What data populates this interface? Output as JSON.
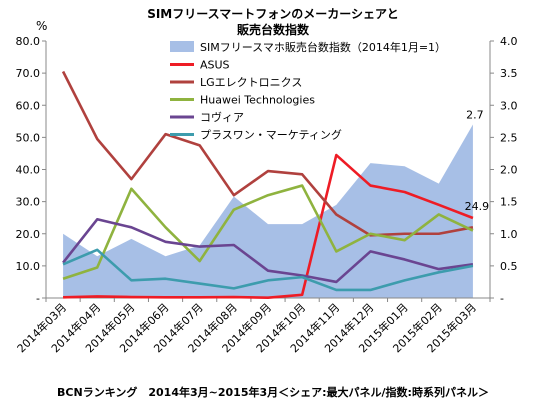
{
  "chart_data": {
    "type": "line",
    "title_line1": "SIMフリースマートフォンのメーカーシェアと",
    "title_line2": "販売台数指数",
    "y_unit": "%",
    "footer": "BCNランキング　2014年3月~2015年3月＜シェア:最大パネル/指数:時系列パネル＞",
    "categories": [
      "2014年03月",
      "2014年04月",
      "2014年05月",
      "2014年06月",
      "2014年07月",
      "2014年08月",
      "2014年09月",
      "2014年10月",
      "2014年11月",
      "2014年12月",
      "2015年01月",
      "2015年02月",
      "2015年03月"
    ],
    "ylim_left": [
      0,
      80
    ],
    "ylim_right": [
      0,
      4
    ],
    "left_ticks": [
      "-",
      "10.0",
      "20.0",
      "30.0",
      "40.0",
      "50.0",
      "60.0",
      "70.0",
      "80.0"
    ],
    "right_ticks": [
      "-",
      "0.5",
      "1.0",
      "1.5",
      "2.0",
      "2.5",
      "3.0",
      "3.5",
      "4.0"
    ],
    "area_series": {
      "name": "SIMフリースマホ販売台数指数（2014年1月=1）",
      "color": "#a7bfe6",
      "values": [
        1.0,
        0.65,
        0.92,
        0.65,
        0.82,
        1.58,
        1.15,
        1.15,
        1.45,
        2.1,
        2.05,
        1.78,
        2.7
      ],
      "end_label": "2.7"
    },
    "series": [
      {
        "name": "ASUS",
        "color": "#ee1c25",
        "values": [
          0.2,
          0.5,
          0.3,
          0.2,
          0.2,
          0.3,
          0.1,
          1.0,
          44.5,
          35.0,
          33.0,
          29.0,
          24.9
        ],
        "end_label": "24.9"
      },
      {
        "name": "LGエレクトロニクス",
        "color": "#b0413e",
        "values": [
          70.5,
          49.5,
          37.0,
          51.0,
          47.5,
          32.0,
          39.5,
          38.5,
          26.0,
          19.5,
          20.0,
          20.0,
          22.0
        ]
      },
      {
        "name": "Huawei Technologies",
        "color": "#8fb33f",
        "values": [
          6.0,
          9.5,
          34.0,
          22.0,
          11.5,
          27.5,
          32.0,
          35.0,
          14.5,
          20.0,
          18.0,
          26.0,
          21.0
        ]
      },
      {
        "name": "コヴィア",
        "color": "#6a4591",
        "values": [
          11.0,
          24.5,
          22.0,
          17.5,
          16.0,
          16.5,
          8.5,
          7.0,
          5.0,
          14.5,
          12.0,
          9.0,
          10.5
        ]
      },
      {
        "name": "プラスワン・マーケティング",
        "color": "#3d9cad",
        "values": [
          10.5,
          15.0,
          5.5,
          6.0,
          4.5,
          3.0,
          5.5,
          6.5,
          2.5,
          2.5,
          5.5,
          8.0,
          10.0
        ]
      }
    ],
    "legend_position": "top-right",
    "grid": false
  }
}
